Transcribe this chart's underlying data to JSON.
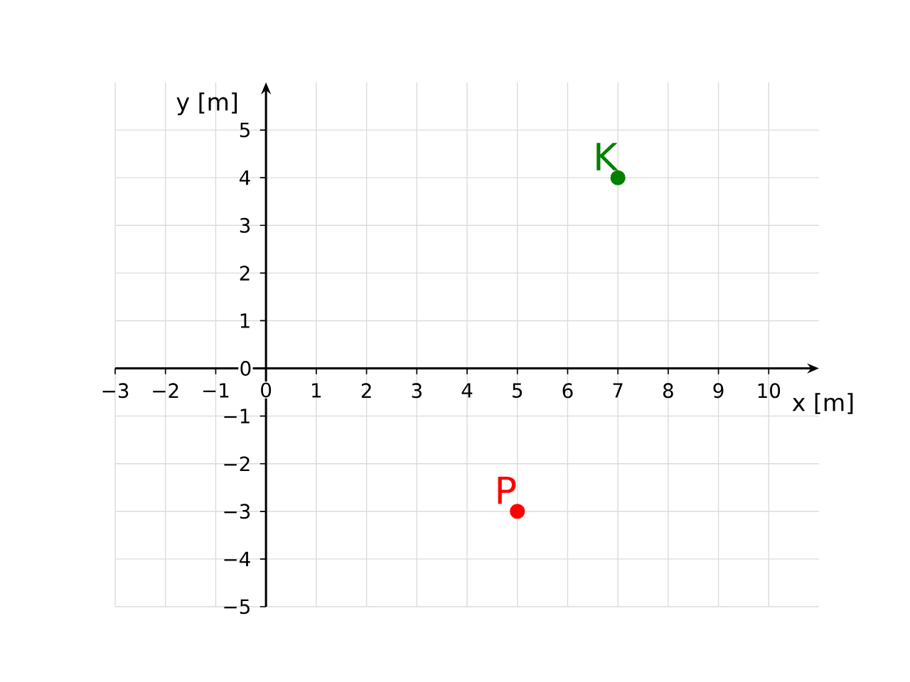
{
  "chart_data": {
    "type": "scatter",
    "xlabel": "x [m]",
    "ylabel": "y [m]",
    "series": [
      {
        "name": "K",
        "color": "#008000",
        "x": [
          7
        ],
        "values": [
          4
        ]
      },
      {
        "name": "P",
        "color": "#ff0000",
        "x": [
          5
        ],
        "values": [
          -3
        ]
      }
    ],
    "xlim": [
      -3,
      11
    ],
    "ylim": [
      -5,
      6
    ],
    "xticks": [
      {
        "value": -3,
        "label": "−3"
      },
      {
        "value": -2,
        "label": "−2"
      },
      {
        "value": -1,
        "label": "−1"
      },
      0,
      1,
      2,
      3,
      4,
      5,
      6,
      7,
      8,
      9,
      10
    ],
    "yticks": [
      {
        "value": -5,
        "label": "−5"
      },
      {
        "value": -4,
        "label": "−4"
      },
      {
        "value": -3,
        "label": "−3"
      },
      {
        "value": -2,
        "label": "−2"
      },
      {
        "value": -1,
        "label": "−1"
      },
      0,
      1,
      2,
      3,
      4,
      5
    ],
    "grid": true,
    "marker": "circle"
  }
}
